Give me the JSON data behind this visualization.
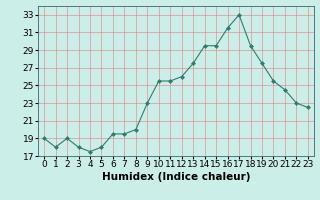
{
  "x": [
    0,
    1,
    2,
    3,
    4,
    5,
    6,
    7,
    8,
    9,
    10,
    11,
    12,
    13,
    14,
    15,
    16,
    17,
    18,
    19,
    20,
    21,
    22,
    23
  ],
  "y": [
    19,
    18,
    19,
    18,
    17.5,
    18,
    19.5,
    19.5,
    20,
    23,
    25.5,
    25.5,
    26,
    27.5,
    29.5,
    29.5,
    31.5,
    33,
    29.5,
    27.5,
    25.5,
    24.5,
    23,
    22.5
  ],
  "line_color": "#2e7d6e",
  "marker": "D",
  "marker_size": 2,
  "bg_color": "#cceee8",
  "grid_color": "#e08080",
  "xlabel": "Humidex (Indice chaleur)",
  "ylim": [
    17,
    34
  ],
  "xlim": [
    -0.5,
    23.5
  ],
  "yticks": [
    17,
    19,
    21,
    23,
    25,
    27,
    29,
    31,
    33
  ],
  "xtick_labels": [
    "0",
    "1",
    "2",
    "3",
    "4",
    "5",
    "6",
    "7",
    "8",
    "9",
    "10",
    "11",
    "12",
    "13",
    "14",
    "15",
    "16",
    "17",
    "18",
    "19",
    "20",
    "21",
    "22",
    "23"
  ],
  "xlabel_fontsize": 7.5,
  "tick_fontsize": 6.5
}
